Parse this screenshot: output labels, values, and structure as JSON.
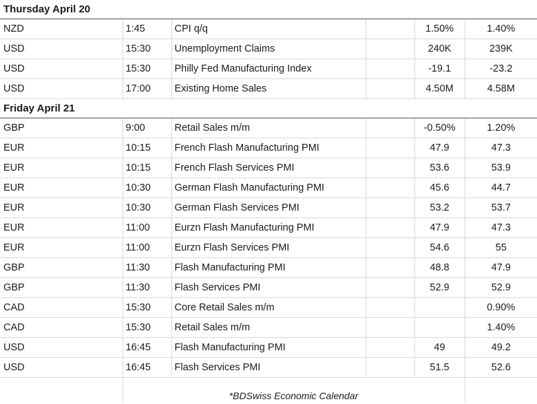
{
  "sections": [
    {
      "day": "Thursday April 20",
      "rows": [
        {
          "currency": "NZD",
          "time": "1:45",
          "event": "CPI q/q",
          "forecast": "1.50%",
          "previous": "1.40%"
        },
        {
          "currency": "USD",
          "time": "15:30",
          "event": "Unemployment Claims",
          "forecast": "240K",
          "previous": "239K"
        },
        {
          "currency": "USD",
          "time": "15:30",
          "event": "Philly Fed Manufacturing Index",
          "forecast": "-19.1",
          "previous": "-23.2"
        },
        {
          "currency": "USD",
          "time": "17:00",
          "event": "Existing Home Sales",
          "forecast": "4.50M",
          "previous": "4.58M"
        }
      ]
    },
    {
      "day": "Friday April 21",
      "rows": [
        {
          "currency": "GBP",
          "time": "9:00",
          "event": "Retail Sales m/m",
          "forecast": "-0.50%",
          "previous": "1.20%"
        },
        {
          "currency": "EUR",
          "time": "10:15",
          "event": "French Flash Manufacturing PMI",
          "forecast": "47.9",
          "previous": "47.3"
        },
        {
          "currency": "EUR",
          "time": "10:15",
          "event": "French Flash Services PMI",
          "forecast": "53.6",
          "previous": "53.9"
        },
        {
          "currency": "EUR",
          "time": "10:30",
          "event": "German Flash Manufacturing PMI",
          "forecast": "45.6",
          "previous": "44.7"
        },
        {
          "currency": "EUR",
          "time": "10:30",
          "event": "German Flash Services PMI",
          "forecast": "53.2",
          "previous": "53.7"
        },
        {
          "currency": "EUR",
          "time": "11:00",
          "event": "Eurzn Flash Manufacturing PMI",
          "forecast": "47.9",
          "previous": "47.3"
        },
        {
          "currency": "EUR",
          "time": "11:00",
          "event": "Eurzn Flash Services PMI",
          "forecast": "54.6",
          "previous": "55"
        },
        {
          "currency": "GBP",
          "time": "11:30",
          "event": "Flash Manufacturing PMI",
          "forecast": "48.8",
          "previous": "47.9"
        },
        {
          "currency": "GBP",
          "time": "11:30",
          "event": "Flash Services PMI",
          "forecast": "52.9",
          "previous": "52.9"
        },
        {
          "currency": "CAD",
          "time": "15:30",
          "event": "Core Retail Sales m/m",
          "forecast": "",
          "previous": "0.90%"
        },
        {
          "currency": "CAD",
          "time": "15:30",
          "event": "Retail Sales m/m",
          "forecast": "",
          "previous": "1.40%"
        },
        {
          "currency": "USD",
          "time": "16:45",
          "event": "Flash Manufacturing PMI",
          "forecast": "49",
          "previous": "49.2"
        },
        {
          "currency": "USD",
          "time": "16:45",
          "event": "Flash Services PMI",
          "forecast": "51.5",
          "previous": "52.6"
        }
      ]
    }
  ],
  "footer_note": "*BDSwiss Economic Calendar"
}
